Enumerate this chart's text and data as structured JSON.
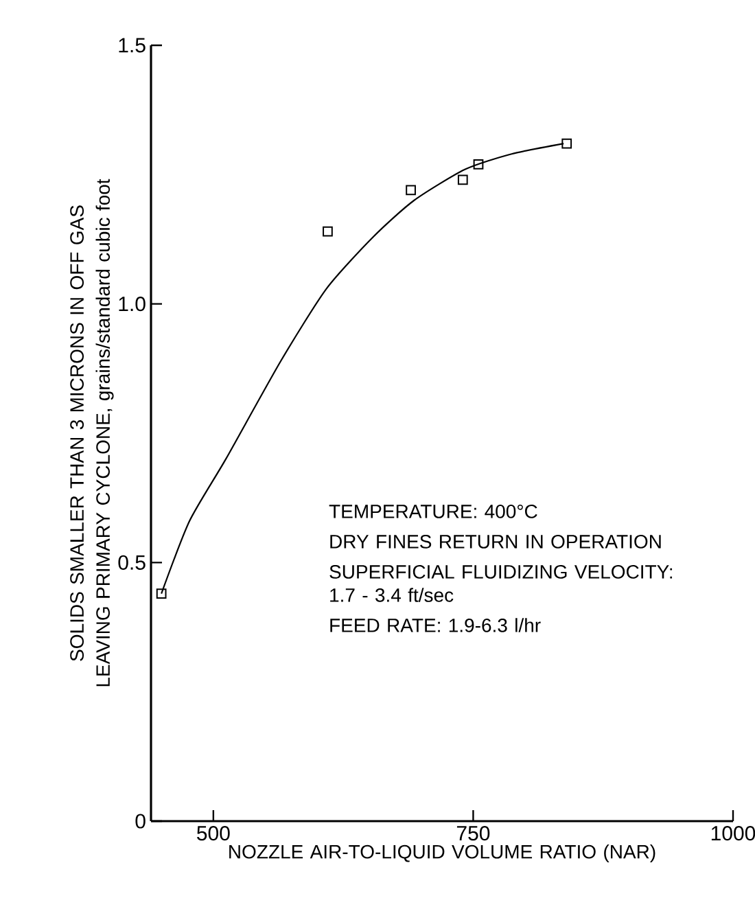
{
  "chart_data": {
    "type": "scatter",
    "xlabel": "NOZZLE AIR-TO-LIQUID VOLUME RATIO (NAR)",
    "ylabel": "SOLIDS SMALLER THAN 3 MICRONS IN OFF GAS LEAVING PRIMARY CYCLONE, grains/standard cubic foot",
    "xlim": [
      440,
      1000
    ],
    "xticks": [
      500,
      750,
      1000
    ],
    "ylim": [
      0,
      1.5
    ],
    "yticks": [
      0,
      0.5,
      {
        "value": 1.0,
        "label": "1.0"
      },
      1.5
    ],
    "series": [
      {
        "color": "#000000",
        "marker": "square",
        "x": [
          450,
          610,
          690,
          740,
          755,
          840
        ],
        "values": [
          0.44,
          1.14,
          1.22,
          1.24,
          1.27,
          1.31
        ]
      },
      {
        "type": "line",
        "color": "#000000",
        "marker": "none",
        "line_style": "solid",
        "x": [
          450,
          477,
          512,
          565,
          609,
          654,
          693,
          742,
          787,
          837
        ],
        "values": [
          0.44,
          0.58,
          0.7,
          0.89,
          1.03,
          1.13,
          1.2,
          1.26,
          1.29,
          1.31
        ]
      }
    ],
    "annotations": [
      "TEMPERATURE:  400°C",
      "DRY FINES RETURN IN OPERATION",
      "SUPERFICIAL FLUIDIZING VELOCITY: 1.7 - 3.4 ft/sec",
      "FEED RATE: 1.9-6.3 l/hr"
    ]
  }
}
